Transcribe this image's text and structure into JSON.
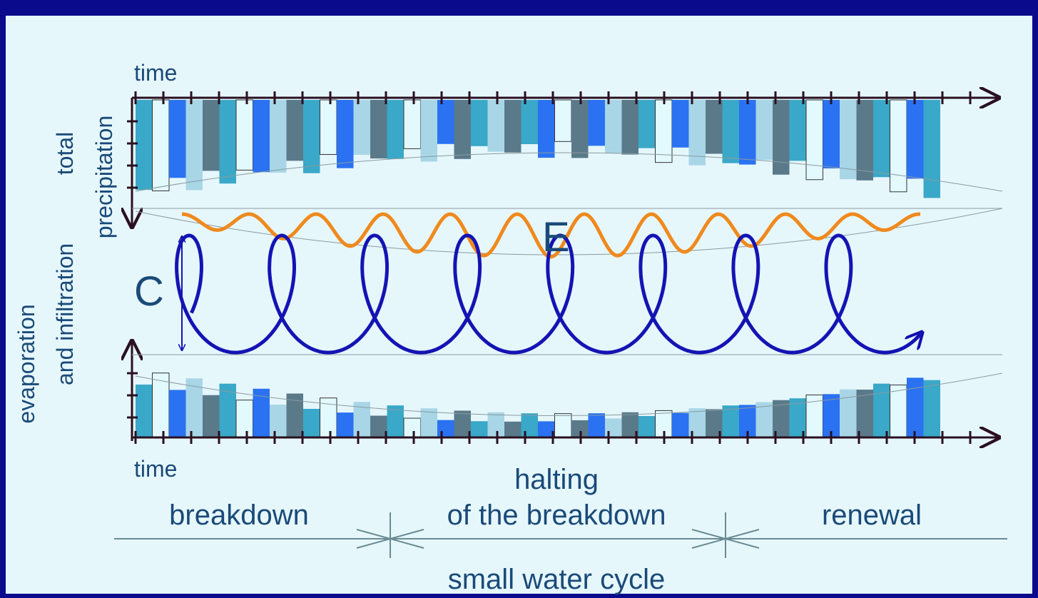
{
  "axes": {
    "top_label": "time",
    "bottom_label": "time",
    "upper_y_label": [
      "total",
      "precipitation"
    ],
    "lower_y_label": [
      "evaporation",
      "and infiltration"
    ]
  },
  "symbols": {
    "evaporation": "E",
    "condensation": "C"
  },
  "phases": {
    "first": "breakdown",
    "second": [
      "halting",
      "of the breakdown"
    ],
    "third": "renewal"
  },
  "caption": "small water cycle"
}
